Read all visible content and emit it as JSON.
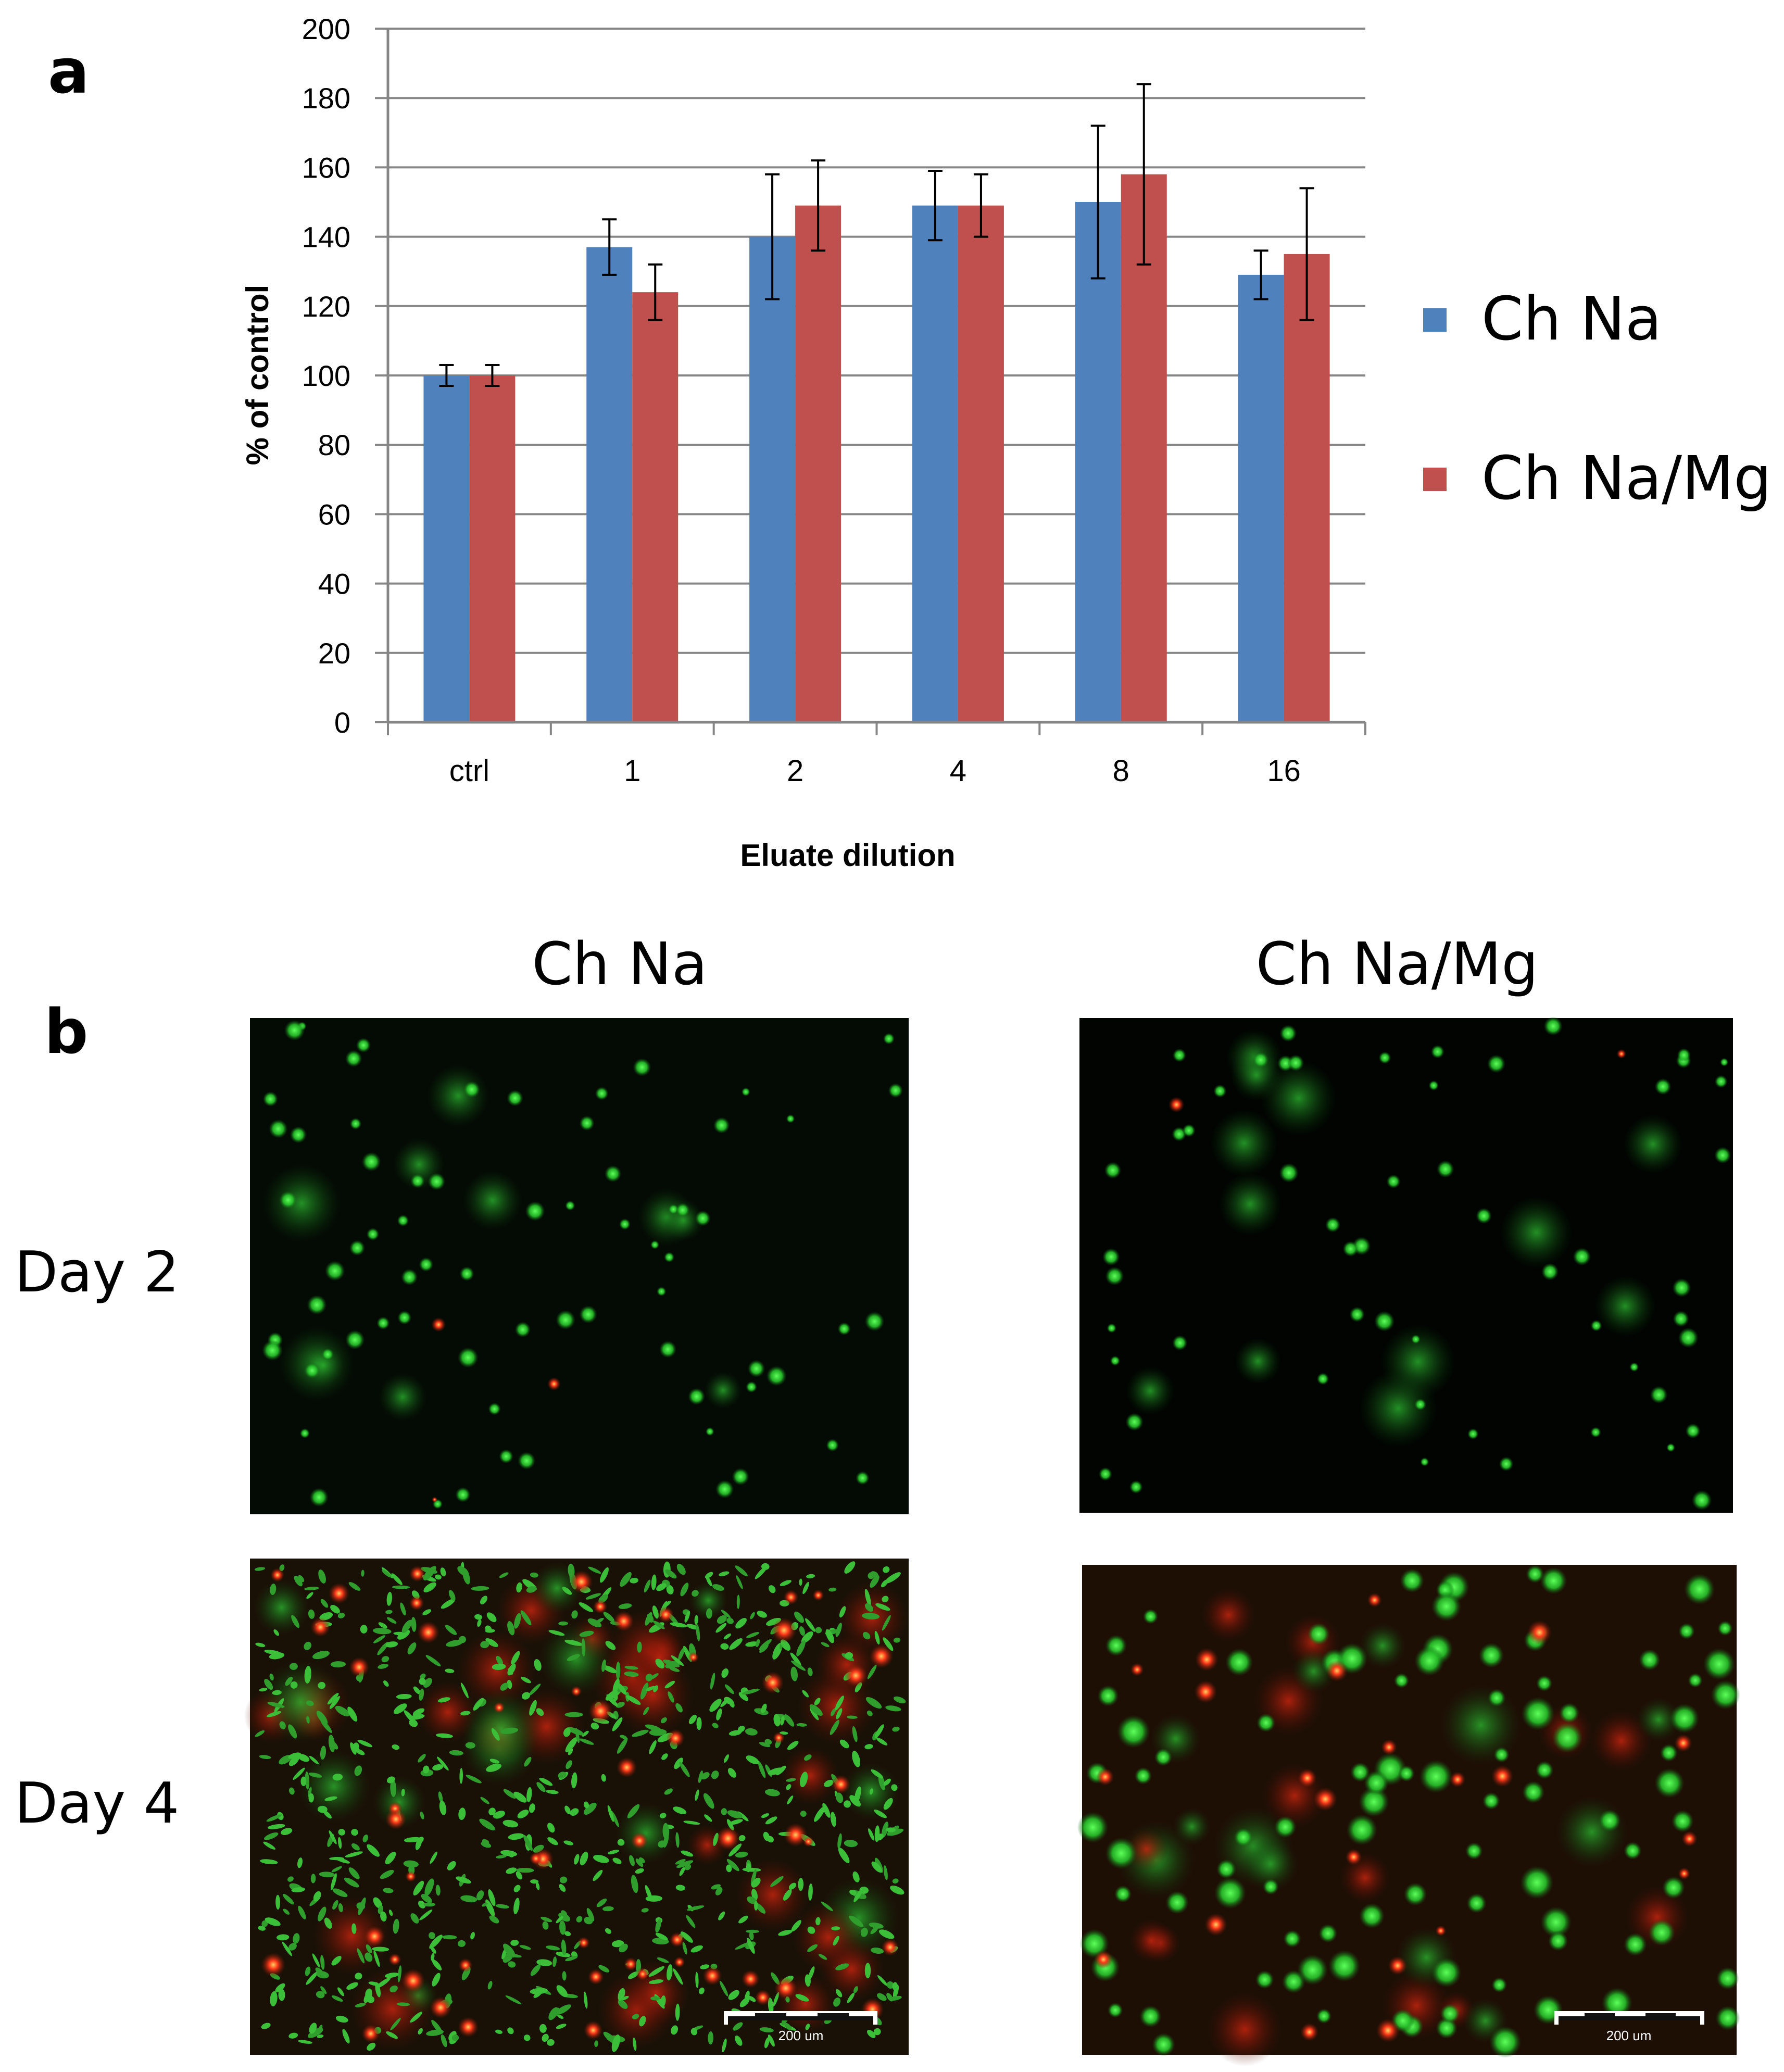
{
  "panel_a": {
    "letter": "a"
  },
  "panel_b": {
    "letter": "b",
    "column_headers": [
      "Ch Na",
      "Ch Na/Mg"
    ],
    "row_labels": [
      "Day 2",
      "Day 4"
    ],
    "scale_bar_label": "200 um"
  },
  "chart_data": {
    "type": "bar",
    "categories": [
      "ctrl",
      "1",
      "2",
      "4",
      "8",
      "16"
    ],
    "series": [
      {
        "name": "Ch Na",
        "color": "#4F81BD",
        "values": [
          100,
          137,
          140,
          149,
          150,
          129
        ],
        "errors": [
          3,
          8,
          18,
          10,
          22,
          7
        ]
      },
      {
        "name": "Ch Na/Mg",
        "color": "#C0504D",
        "values": [
          100,
          124,
          149,
          149,
          158,
          135
        ],
        "errors": [
          3,
          8,
          13,
          9,
          26,
          19
        ]
      }
    ],
    "xlabel": "Eluate dilution",
    "ylabel": "% of control",
    "ylim": [
      0,
      200
    ],
    "yticks": [
      0,
      20,
      40,
      60,
      80,
      100,
      120,
      140,
      160,
      180,
      200
    ],
    "grid": true,
    "legend": "right"
  },
  "micrographs": [
    {
      "label": "Ch Na Day 2",
      "background": "#040a04",
      "cells": "sparse green"
    },
    {
      "label": "Ch Na/Mg Day 2",
      "background": "#010401",
      "cells": "sparse green"
    },
    {
      "label": "Ch Na Day 4",
      "background": "#1a1106",
      "cells": "dense green with red"
    },
    {
      "label": "Ch Na/Mg Day 4",
      "background": "#1e0f05",
      "cells": "green with red"
    }
  ]
}
